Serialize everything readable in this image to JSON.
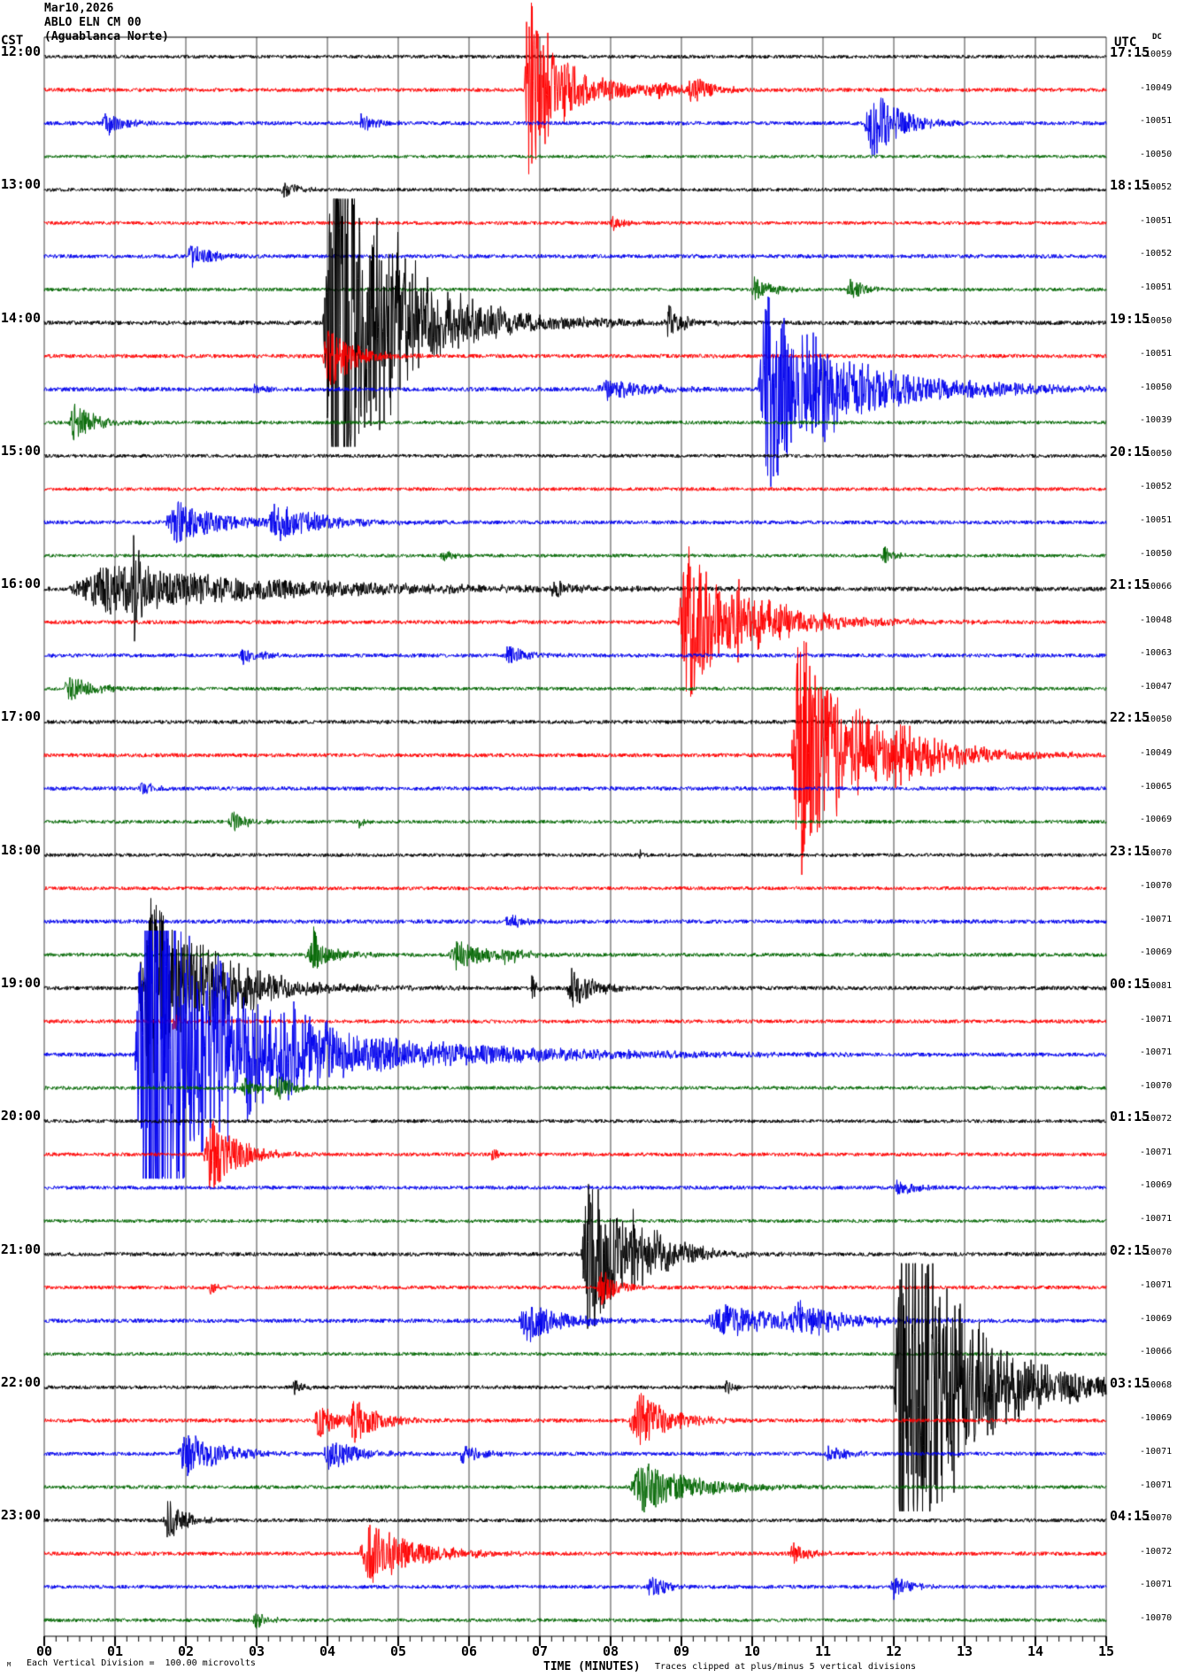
{
  "header": {
    "date": "Mar10,2026",
    "station": "ABLO ELN CM 00",
    "location": "(Aguablanca Norte)"
  },
  "axes": {
    "left_tz": "CST",
    "right_tz": "UTC",
    "dc_header": "DC",
    "x_label": "TIME (MINUTES)"
  },
  "footer": {
    "corner_mark": "M",
    "scale_note": "Each Vertical Division =  100.00 microvolts",
    "clip_note": "Traces clipped at plus/minus 5 vertical divisions"
  },
  "chart_data": {
    "type": "line",
    "subtype": "helicorder-seismogram",
    "title": "ABLO ELN CM 00 (Aguablanca Norte) — Mar10,2026",
    "xlabel": "TIME (MINUTES)",
    "x_range_minutes": [
      0,
      15
    ],
    "minutes_per_line": 15,
    "x_ticks": [
      "00",
      "01",
      "02",
      "03",
      "04",
      "05",
      "06",
      "07",
      "08",
      "09",
      "10",
      "11",
      "12",
      "13",
      "14",
      "15"
    ],
    "grid": true,
    "grid_color": "#808080",
    "left_axis_timezone": "CST",
    "right_axis_timezone": "UTC",
    "vertical_division_microvolts": 100.0,
    "clip_divisions": 5,
    "trace_color_cycle": [
      "#000000",
      "#ff0000",
      "#0000ee",
      "#006600"
    ],
    "rows": [
      {
        "cst": "12:00",
        "utc": "17:15",
        "dc": "-10059",
        "noise": 2.0,
        "events": []
      },
      {
        "cst": null,
        "utc": null,
        "dc": "-10049",
        "noise": 2.2,
        "events": [
          {
            "t": 0.452,
            "amp": 130,
            "dur": 0.018
          },
          {
            "t": 0.465,
            "amp": 42,
            "dur": 0.055
          },
          {
            "t": 0.575,
            "amp": 13,
            "dur": 0.018
          },
          {
            "t": 0.605,
            "amp": 17,
            "dur": 0.022
          }
        ]
      },
      {
        "cst": null,
        "utc": null,
        "dc": "-10051",
        "noise": 2.2,
        "events": [
          {
            "t": 0.054,
            "amp": 16,
            "dur": 0.02
          },
          {
            "t": 0.296,
            "amp": 13,
            "dur": 0.014
          },
          {
            "t": 0.772,
            "amp": 44,
            "dur": 0.032
          }
        ]
      },
      {
        "cst": null,
        "utc": null,
        "dc": "-10050",
        "noise": 1.8,
        "events": []
      },
      {
        "cst": "13:00",
        "utc": "18:15",
        "dc": "-10052",
        "noise": 2.0,
        "events": [
          {
            "t": 0.222,
            "amp": 9,
            "dur": 0.02
          }
        ]
      },
      {
        "cst": null,
        "utc": null,
        "dc": "-10051",
        "noise": 2.0,
        "events": [
          {
            "t": 0.533,
            "amp": 10,
            "dur": 0.012
          }
        ]
      },
      {
        "cst": null,
        "utc": null,
        "dc": "-10052",
        "noise": 2.2,
        "events": [
          {
            "t": 0.133,
            "amp": 13,
            "dur": 0.025
          }
        ]
      },
      {
        "cst": null,
        "utc": null,
        "dc": "-10051",
        "noise": 2.0,
        "events": [
          {
            "t": 0.665,
            "amp": 14,
            "dur": 0.02
          },
          {
            "t": 0.755,
            "amp": 12,
            "dur": 0.018
          }
        ]
      },
      {
        "cst": "14:00",
        "utc": "19:15",
        "dc": "-10050",
        "noise": 2.4,
        "events": [
          {
            "t": 0.262,
            "amp": 290,
            "dur": 0.05
          },
          {
            "t": 0.3,
            "amp": 55,
            "dur": 0.1
          },
          {
            "t": 0.585,
            "amp": 22,
            "dur": 0.015
          }
        ]
      },
      {
        "cst": null,
        "utc": null,
        "dc": "-10051",
        "noise": 2.2,
        "events": [
          {
            "t": 0.262,
            "amp": 42,
            "dur": 0.028
          }
        ]
      },
      {
        "cst": null,
        "utc": null,
        "dc": "-10050",
        "noise": 2.4,
        "events": [
          {
            "t": 0.196,
            "amp": 9,
            "dur": 0.01
          },
          {
            "t": 0.52,
            "amp": 13,
            "dur": 0.05
          },
          {
            "t": 0.672,
            "amp": 140,
            "dur": 0.04
          },
          {
            "t": 0.7,
            "amp": 42,
            "dur": 0.12
          }
        ]
      },
      {
        "cst": null,
        "utc": null,
        "dc": "-10039",
        "noise": 2.0,
        "events": [
          {
            "t": 0.023,
            "amp": 23,
            "dur": 0.025
          }
        ]
      },
      {
        "cst": "15:00",
        "utc": "20:15",
        "dc": "-10050",
        "noise": 2.0,
        "events": []
      },
      {
        "cst": null,
        "utc": null,
        "dc": "-10052",
        "noise": 2.0,
        "events": []
      },
      {
        "cst": null,
        "utc": null,
        "dc": "-10051",
        "noise": 2.2,
        "events": [
          {
            "t": 0.113,
            "amp": 26,
            "dur": 0.05
          },
          {
            "t": 0.205,
            "amp": 20,
            "dur": 0.06
          }
        ]
      },
      {
        "cst": null,
        "utc": null,
        "dc": "-10050",
        "noise": 1.9,
        "events": [
          {
            "t": 0.372,
            "amp": 9,
            "dur": 0.012
          },
          {
            "t": 0.787,
            "amp": 12,
            "dur": 0.012
          }
        ]
      },
      {
        "cst": "16:00",
        "utc": "21:15",
        "dc": "-10066",
        "noise": 2.5,
        "events": [
          {
            "t": 0.02,
            "amp": 28,
            "dur": 0.2
          },
          {
            "t": 0.082,
            "amp": 75,
            "dur": 0.01
          },
          {
            "t": 0.475,
            "amp": 12,
            "dur": 0.02
          }
        ]
      },
      {
        "cst": null,
        "utc": null,
        "dc": "-10048",
        "noise": 2.2,
        "events": [
          {
            "t": 0.596,
            "amp": 95,
            "dur": 0.045
          },
          {
            "t": 0.64,
            "amp": 28,
            "dur": 0.08
          }
        ]
      },
      {
        "cst": null,
        "utc": null,
        "dc": "-10063",
        "noise": 2.2,
        "events": [
          {
            "t": 0.183,
            "amp": 10,
            "dur": 0.02
          },
          {
            "t": 0.433,
            "amp": 13,
            "dur": 0.02
          }
        ]
      },
      {
        "cst": null,
        "utc": null,
        "dc": "-10047",
        "noise": 2.0,
        "events": [
          {
            "t": 0.017,
            "amp": 15,
            "dur": 0.03
          }
        ]
      },
      {
        "cst": "17:00",
        "utc": "22:15",
        "dc": "-10050",
        "noise": 2.2,
        "events": []
      },
      {
        "cst": null,
        "utc": null,
        "dc": "-10049",
        "noise": 2.2,
        "events": [
          {
            "t": 0.703,
            "amp": 160,
            "dur": 0.04
          },
          {
            "t": 0.73,
            "amp": 40,
            "dur": 0.09
          },
          {
            "t": 0.79,
            "amp": 26,
            "dur": 0.06
          }
        ]
      },
      {
        "cst": null,
        "utc": null,
        "dc": "-10065",
        "noise": 2.2,
        "events": [
          {
            "t": 0.088,
            "amp": 10,
            "dur": 0.015
          }
        ]
      },
      {
        "cst": null,
        "utc": null,
        "dc": "-10069",
        "noise": 2.0,
        "events": [
          {
            "t": 0.172,
            "amp": 12,
            "dur": 0.02
          },
          {
            "t": 0.295,
            "amp": 8,
            "dur": 0.008
          }
        ]
      },
      {
        "cst": "18:00",
        "utc": "23:15",
        "dc": "-10070",
        "noise": 2.0,
        "events": [
          {
            "t": 0.56,
            "amp": 7,
            "dur": 0.006
          }
        ]
      },
      {
        "cst": null,
        "utc": null,
        "dc": "-10070",
        "noise": 2.0,
        "events": []
      },
      {
        "cst": null,
        "utc": null,
        "dc": "-10071",
        "noise": 2.3,
        "events": [
          {
            "t": 0.433,
            "amp": 10,
            "dur": 0.02
          }
        ]
      },
      {
        "cst": null,
        "utc": null,
        "dc": "-10069",
        "noise": 2.1,
        "events": [
          {
            "t": 0.245,
            "amp": 17,
            "dur": 0.03
          },
          {
            "t": 0.253,
            "amp": 40,
            "dur": 0.004
          },
          {
            "t": 0.38,
            "amp": 17,
            "dur": 0.04
          },
          {
            "t": 0.43,
            "amp": 10,
            "dur": 0.02
          }
        ]
      },
      {
        "cst": "19:00",
        "utc": "00:15",
        "dc": "-10081",
        "noise": 2.3,
        "events": [
          {
            "t": 0.088,
            "amp": 120,
            "dur": 0.05
          },
          {
            "t": 0.13,
            "amp": 32,
            "dur": 0.08
          },
          {
            "t": 0.458,
            "amp": 18,
            "dur": 0.006
          },
          {
            "t": 0.492,
            "amp": 28,
            "dur": 0.025
          }
        ]
      },
      {
        "cst": null,
        "utc": null,
        "dc": "-10071",
        "noise": 2.1,
        "events": [
          {
            "t": 0.12,
            "amp": 9,
            "dur": 0.01
          }
        ]
      },
      {
        "cst": null,
        "utc": null,
        "dc": "-10071",
        "noise": 2.3,
        "events": [
          {
            "t": 0.085,
            "amp": 300,
            "dur": 0.06
          },
          {
            "t": 0.13,
            "amp": 55,
            "dur": 0.18
          },
          {
            "t": 0.225,
            "amp": 28,
            "dur": 0.05
          }
        ]
      },
      {
        "cst": null,
        "utc": null,
        "dc": "-10070",
        "noise": 2.0,
        "events": [
          {
            "t": 0.185,
            "amp": 12,
            "dur": 0.02
          },
          {
            "t": 0.215,
            "amp": 14,
            "dur": 0.02
          }
        ]
      },
      {
        "cst": "20:00",
        "utc": "01:15",
        "dc": "-10072",
        "noise": 2.0,
        "events": []
      },
      {
        "cst": null,
        "utc": null,
        "dc": "-10071",
        "noise": 2.1,
        "events": [
          {
            "t": 0.15,
            "amp": 46,
            "dur": 0.032
          },
          {
            "t": 0.42,
            "amp": 8,
            "dur": 0.01
          }
        ]
      },
      {
        "cst": null,
        "utc": null,
        "dc": "-10069",
        "noise": 2.1,
        "events": [
          {
            "t": 0.8,
            "amp": 11,
            "dur": 0.02
          }
        ]
      },
      {
        "cst": null,
        "utc": null,
        "dc": "-10071",
        "noise": 1.9,
        "events": []
      },
      {
        "cst": "21:00",
        "utc": "02:15",
        "dc": "-10070",
        "noise": 2.2,
        "events": [
          {
            "t": 0.505,
            "amp": 100,
            "dur": 0.04
          },
          {
            "t": 0.545,
            "amp": 28,
            "dur": 0.05
          },
          {
            "t": 0.6,
            "amp": 12,
            "dur": 0.02
          }
        ]
      },
      {
        "cst": null,
        "utc": null,
        "dc": "-10071",
        "noise": 2.1,
        "events": [
          {
            "t": 0.155,
            "amp": 9,
            "dur": 0.008
          },
          {
            "t": 0.52,
            "amp": 22,
            "dur": 0.02
          }
        ]
      },
      {
        "cst": null,
        "utc": null,
        "dc": "-10069",
        "noise": 2.3,
        "events": [
          {
            "t": 0.446,
            "amp": 26,
            "dur": 0.04
          },
          {
            "t": 0.62,
            "amp": 18,
            "dur": 0.1
          },
          {
            "t": 0.7,
            "amp": 20,
            "dur": 0.05
          }
        ]
      },
      {
        "cst": null,
        "utc": null,
        "dc": "-10066",
        "noise": 1.9,
        "events": []
      },
      {
        "cst": "22:00",
        "utc": "03:15",
        "dc": "-10068",
        "noise": 2.1,
        "events": [
          {
            "t": 0.233,
            "amp": 10,
            "dur": 0.01
          },
          {
            "t": 0.64,
            "amp": 12,
            "dur": 0.008
          },
          {
            "t": 0.8,
            "amp": 290,
            "dur": 0.05
          },
          {
            "t": 0.84,
            "amp": 55,
            "dur": 0.1
          }
        ]
      },
      {
        "cst": null,
        "utc": null,
        "dc": "-10069",
        "noise": 2.2,
        "events": [
          {
            "t": 0.254,
            "amp": 22,
            "dur": 0.02
          },
          {
            "t": 0.285,
            "amp": 28,
            "dur": 0.03
          },
          {
            "t": 0.55,
            "amp": 36,
            "dur": 0.035
          }
        ]
      },
      {
        "cst": null,
        "utc": null,
        "dc": "-10071",
        "noise": 2.2,
        "events": [
          {
            "t": 0.125,
            "amp": 28,
            "dur": 0.04
          },
          {
            "t": 0.262,
            "amp": 20,
            "dur": 0.03
          },
          {
            "t": 0.39,
            "amp": 12,
            "dur": 0.02
          },
          {
            "t": 0.735,
            "amp": 10,
            "dur": 0.02
          }
        ]
      },
      {
        "cst": null,
        "utc": null,
        "dc": "-10071",
        "noise": 2.0,
        "events": [
          {
            "t": 0.55,
            "amp": 30,
            "dur": 0.06
          }
        ]
      },
      {
        "cst": "23:00",
        "utc": "04:15",
        "dc": "-10070",
        "noise": 2.1,
        "events": [
          {
            "t": 0.112,
            "amp": 26,
            "dur": 0.02
          }
        ]
      },
      {
        "cst": null,
        "utc": null,
        "dc": "-10072",
        "noise": 2.2,
        "events": [
          {
            "t": 0.296,
            "amp": 36,
            "dur": 0.055
          },
          {
            "t": 0.7,
            "amp": 12,
            "dur": 0.02
          }
        ]
      },
      {
        "cst": null,
        "utc": null,
        "dc": "-10071",
        "noise": 2.1,
        "events": [
          {
            "t": 0.567,
            "amp": 13,
            "dur": 0.02
          },
          {
            "t": 0.796,
            "amp": 13,
            "dur": 0.02
          }
        ]
      },
      {
        "cst": null,
        "utc": null,
        "dc": "-10070",
        "noise": 2.0,
        "events": [
          {
            "t": 0.196,
            "amp": 10,
            "dur": 0.015
          }
        ]
      }
    ]
  }
}
